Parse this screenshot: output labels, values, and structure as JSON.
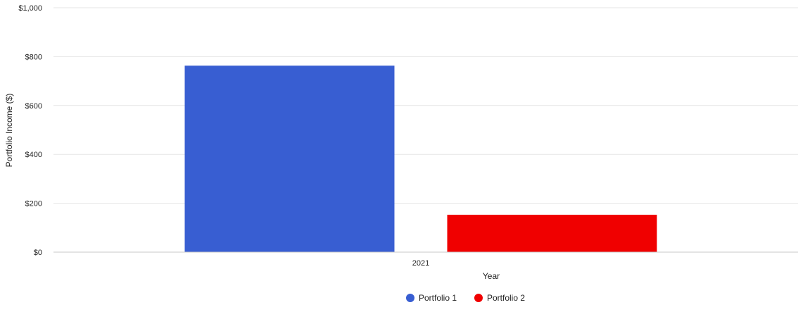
{
  "chart_data": {
    "type": "bar",
    "categories": [
      "2021"
    ],
    "series": [
      {
        "name": "Portfolio 1",
        "values": [
          763
        ],
        "color": "#385ed2"
      },
      {
        "name": "Portfolio 2",
        "values": [
          153
        ],
        "color": "#f00000"
      }
    ],
    "xlabel": "Year",
    "ylabel": "Portfolio Income ($)",
    "ylim": [
      0,
      1000
    ],
    "y_ticks": [
      0,
      200,
      400,
      600,
      800,
      1000
    ],
    "y_tick_labels": [
      "$0",
      "$200",
      "$400",
      "$600",
      "$800",
      "$1,000"
    ],
    "grid": true,
    "legend_position": "bottom"
  }
}
